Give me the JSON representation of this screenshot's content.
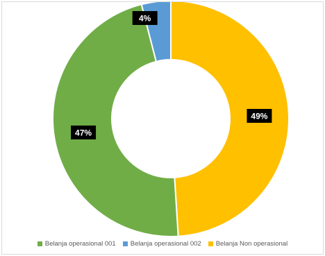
{
  "chart_data": {
    "type": "pie",
    "donut": true,
    "title": "",
    "categories": [
      "Belanja operasional 001",
      "Belanja operasional 002",
      "Belanja Non operasional"
    ],
    "values": [
      47,
      4,
      49
    ],
    "colors": [
      "#70ad47",
      "#5b9bd5",
      "#ffc000"
    ],
    "data_labels": [
      "47%",
      "4%",
      "49%"
    ],
    "legend": {
      "placement": "bottom"
    }
  }
}
